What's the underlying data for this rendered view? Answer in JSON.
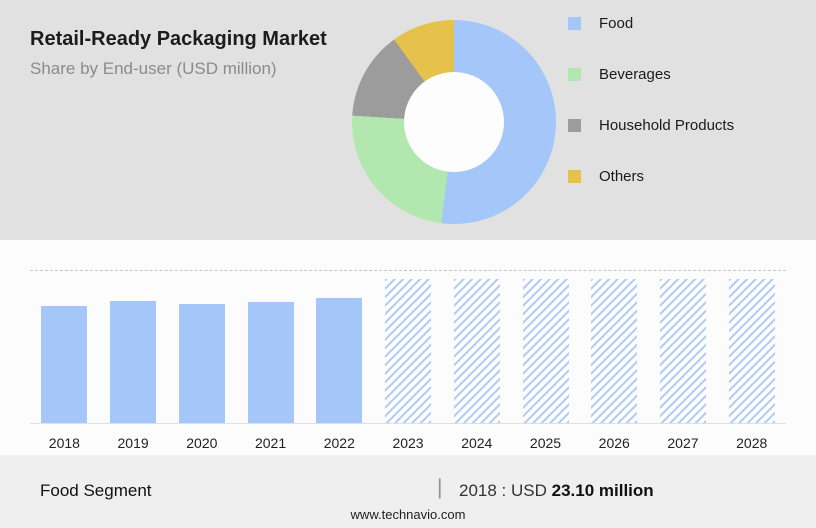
{
  "header": {
    "title": "Retail-Ready Packaging Market",
    "subtitle": "Share by End-user (USD million)"
  },
  "legend": [
    {
      "label": "Food",
      "color": "#a5c6f9"
    },
    {
      "label": "Beverages",
      "color": "#b2e7af"
    },
    {
      "label": "Household Products",
      "color": "#9c9c9c"
    },
    {
      "label": "Others",
      "color": "#e6c14c"
    }
  ],
  "chart_data": [
    {
      "type": "pie",
      "donut": true,
      "title": "Retail-Ready Packaging Market Share by End-user (USD million)",
      "labels": [
        "Food",
        "Beverages",
        "Household Products",
        "Others"
      ],
      "values": [
        52,
        24,
        14,
        10
      ],
      "value_unit": "percent (estimated from arc angles)",
      "colors": [
        "#a5c6f9",
        "#b2e7af",
        "#9c9c9c",
        "#e6c14c"
      ],
      "legend_position": "right"
    },
    {
      "type": "bar",
      "categories": [
        "2018",
        "2019",
        "2020",
        "2021",
        "2022",
        "2023",
        "2024",
        "2025",
        "2026",
        "2027",
        "2028"
      ],
      "values": [
        23.1,
        24.0,
        23.5,
        23.8,
        24.6,
        28.4,
        28.4,
        28.4,
        28.4,
        28.4,
        28.4
      ],
      "known_values": {
        "2018": 23.1
      },
      "ylim": [
        0,
        30
      ],
      "xlabel": "",
      "ylabel": "",
      "bar_color": "#a5c6f9",
      "forecast_start_index": 5,
      "forecast_style": "hatched",
      "grid": "single dashed top gridline"
    }
  ],
  "footer": {
    "segment_label": "Food Segment",
    "separator": "|",
    "value_prefix": "2018 : USD",
    "value_bold": "23.10 million"
  },
  "website": "www.technavio.com"
}
